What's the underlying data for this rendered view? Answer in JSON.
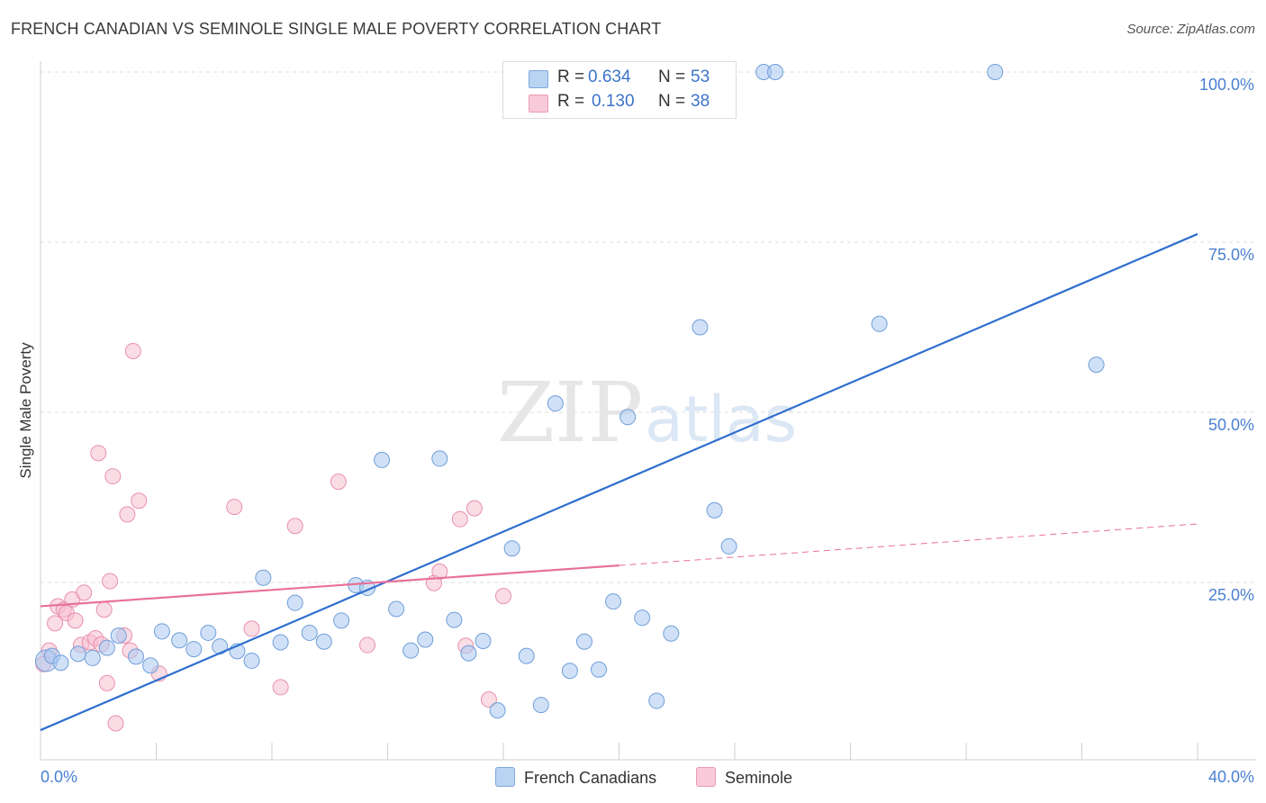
{
  "title": "FRENCH CANADIAN VS SEMINOLE SINGLE MALE POVERTY CORRELATION CHART",
  "source": "Source: ZipAtlas.com",
  "watermark": {
    "zip": "ZIP",
    "atlas": "atlas"
  },
  "legend": {
    "rows": [
      {
        "r_label": "R =",
        "r_value": "0.634",
        "n_label": "N =",
        "n_value": "53"
      },
      {
        "r_label": "R =",
        "r_value": "0.130",
        "n_label": "N =",
        "n_value": "38"
      }
    ]
  },
  "bottom_legend": {
    "series1": "French Canadians",
    "series2": "Seminole"
  },
  "colors": {
    "blue_fill": "#a9c8f0",
    "blue_stroke": "#6f9ed9",
    "blue_line": "#2f6fce",
    "pink_fill": "#f6bfd0",
    "pink_stroke": "#e890ad",
    "pink_line": "#e8709a",
    "axis_text": "#4a7fd0",
    "grid": "#dddddd"
  },
  "chart_data": {
    "type": "scatter",
    "title": "FRENCH CANADIAN VS SEMINOLE SINGLE MALE POVERTY CORRELATION CHART",
    "xlabel": "",
    "ylabel": "Single Male Poverty",
    "xlim": [
      0,
      40
    ],
    "ylim": [
      0,
      103
    ],
    "x_tick_labels": [
      "0.0%",
      "40.0%"
    ],
    "y_ticks": [
      25,
      50,
      75,
      100
    ],
    "y_tick_labels": [
      "25.0%",
      "50.0%",
      "75.0%",
      "100.0%"
    ],
    "grid": true,
    "legend_position": "top-center",
    "series": [
      {
        "name": "French Canadians",
        "R": 0.634,
        "N": 53,
        "points": [
          [
            0.2,
            13.5
          ],
          [
            0.4,
            14.2
          ],
          [
            0.7,
            13.2
          ],
          [
            1.3,
            14.5
          ],
          [
            1.8,
            13.9
          ],
          [
            2.3,
            15.4
          ],
          [
            2.7,
            17.2
          ],
          [
            3.3,
            14.1
          ],
          [
            3.8,
            12.8
          ],
          [
            4.2,
            17.8
          ],
          [
            4.8,
            16.5
          ],
          [
            5.3,
            15.2
          ],
          [
            5.8,
            17.6
          ],
          [
            6.2,
            15.6
          ],
          [
            6.8,
            14.9
          ],
          [
            7.3,
            13.5
          ],
          [
            7.7,
            25.7
          ],
          [
            8.3,
            16.2
          ],
          [
            8.8,
            22.0
          ],
          [
            9.3,
            17.6
          ],
          [
            9.8,
            16.3
          ],
          [
            10.4,
            19.4
          ],
          [
            10.9,
            24.6
          ],
          [
            11.3,
            24.2
          ],
          [
            11.8,
            43.0
          ],
          [
            12.3,
            21.1
          ],
          [
            12.8,
            15.0
          ],
          [
            13.3,
            16.6
          ],
          [
            13.8,
            43.2
          ],
          [
            14.3,
            19.5
          ],
          [
            14.8,
            14.6
          ],
          [
            15.3,
            16.4
          ],
          [
            15.8,
            6.2
          ],
          [
            16.3,
            30.0
          ],
          [
            16.8,
            14.2
          ],
          [
            17.3,
            7.0
          ],
          [
            17.8,
            51.3
          ],
          [
            18.3,
            12.0
          ],
          [
            18.8,
            16.3
          ],
          [
            19.3,
            12.2
          ],
          [
            19.8,
            22.2
          ],
          [
            20.3,
            49.3
          ],
          [
            20.8,
            19.8
          ],
          [
            21.3,
            7.6
          ],
          [
            21.8,
            17.5
          ],
          [
            22.8,
            62.5
          ],
          [
            23.3,
            35.6
          ],
          [
            23.8,
            30.3
          ],
          [
            25.0,
            100.0
          ],
          [
            25.4,
            100.0
          ],
          [
            29.0,
            63.0
          ],
          [
            33.0,
            100.0
          ],
          [
            36.5,
            57.0
          ]
        ],
        "trend": {
          "x": [
            0,
            40
          ],
          "y": [
            3.3,
            76.2
          ]
        }
      },
      {
        "name": "Seminole",
        "R": 0.13,
        "N": 38,
        "points": [
          [
            0.1,
            13.0
          ],
          [
            0.3,
            15.0
          ],
          [
            0.5,
            19.0
          ],
          [
            0.6,
            21.5
          ],
          [
            0.8,
            21.0
          ],
          [
            0.9,
            20.5
          ],
          [
            1.1,
            22.5
          ],
          [
            1.2,
            19.4
          ],
          [
            1.4,
            15.8
          ],
          [
            1.5,
            23.5
          ],
          [
            1.7,
            16.2
          ],
          [
            1.9,
            16.8
          ],
          [
            2.0,
            44.0
          ],
          [
            2.1,
            15.9
          ],
          [
            2.2,
            21.0
          ],
          [
            2.3,
            10.2
          ],
          [
            2.4,
            25.2
          ],
          [
            2.5,
            40.6
          ],
          [
            2.6,
            4.3
          ],
          [
            2.9,
            17.2
          ],
          [
            3.0,
            35.0
          ],
          [
            3.1,
            15.0
          ],
          [
            3.2,
            59.0
          ],
          [
            3.4,
            37.0
          ],
          [
            4.1,
            11.6
          ],
          [
            6.7,
            36.1
          ],
          [
            7.3,
            18.2
          ],
          [
            8.3,
            9.6
          ],
          [
            8.8,
            33.3
          ],
          [
            10.3,
            39.8
          ],
          [
            11.3,
            15.8
          ],
          [
            13.6,
            24.9
          ],
          [
            13.8,
            26.6
          ],
          [
            14.5,
            34.3
          ],
          [
            14.7,
            15.7
          ],
          [
            15.0,
            35.9
          ],
          [
            15.5,
            7.8
          ],
          [
            16.0,
            23.0
          ]
        ],
        "trend": {
          "x": [
            0,
            20
          ],
          "y": [
            21.5,
            27.5
          ],
          "dashed_extension": {
            "x": [
              20,
              40
            ],
            "y": [
              27.5,
              33.6
            ]
          }
        }
      }
    ]
  }
}
